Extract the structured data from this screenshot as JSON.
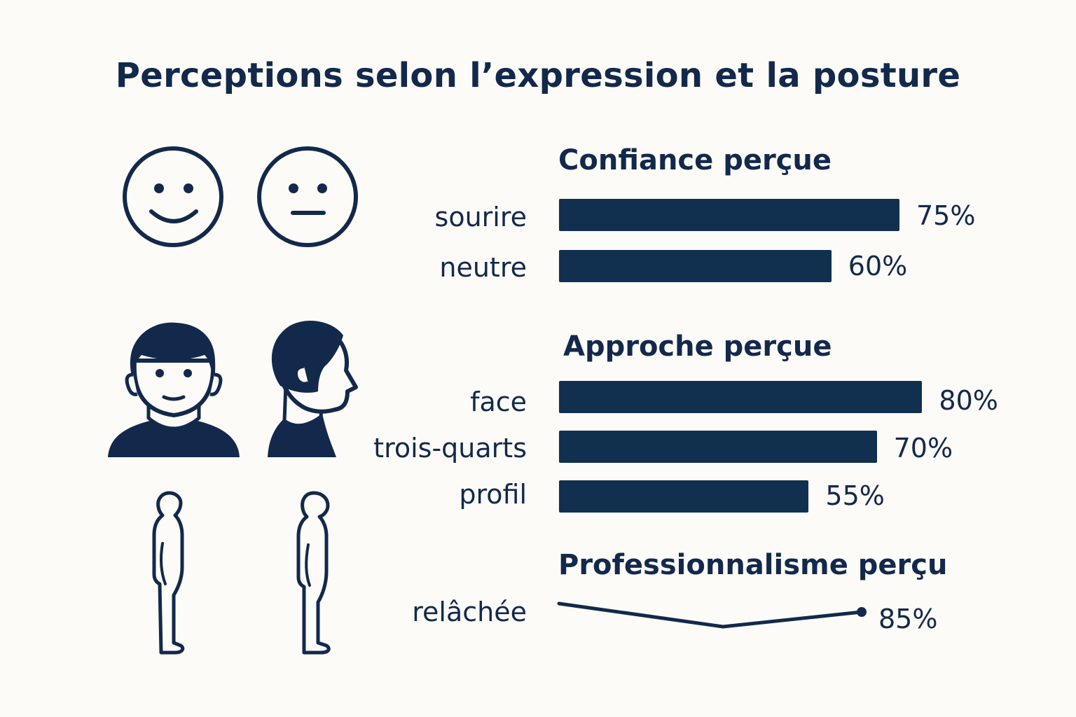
{
  "title": "Perceptions selon l’expression et la posture",
  "colors": {
    "ink": "#13294b",
    "bar": "#11304f",
    "background": "#fcfbf8"
  },
  "icons": [
    "smiling-face-icon",
    "neutral-face-icon",
    "front-face-person-icon",
    "profile-face-person-icon",
    "relaxed-posture-icon",
    "upright-posture-icon"
  ],
  "chart_data": [
    {
      "type": "bar",
      "title": "Confiance perçue",
      "categories": [
        "sourire",
        "neutre"
      ],
      "values": [
        75,
        60
      ],
      "value_labels": [
        "75%",
        "60%"
      ],
      "xlim": [
        0,
        100
      ]
    },
    {
      "type": "bar",
      "title": "Approche perçue",
      "categories": [
        "face",
        "trois-quarts",
        "profil"
      ],
      "values": [
        80,
        70,
        55
      ],
      "value_labels": [
        "80%",
        "70%",
        "55%"
      ],
      "xlim": [
        0,
        100
      ]
    },
    {
      "type": "line",
      "title": "Professionnalisme perçu",
      "categories": [
        "relâchée"
      ],
      "value_labels": [
        "85%"
      ],
      "end_value": 85
    }
  ]
}
